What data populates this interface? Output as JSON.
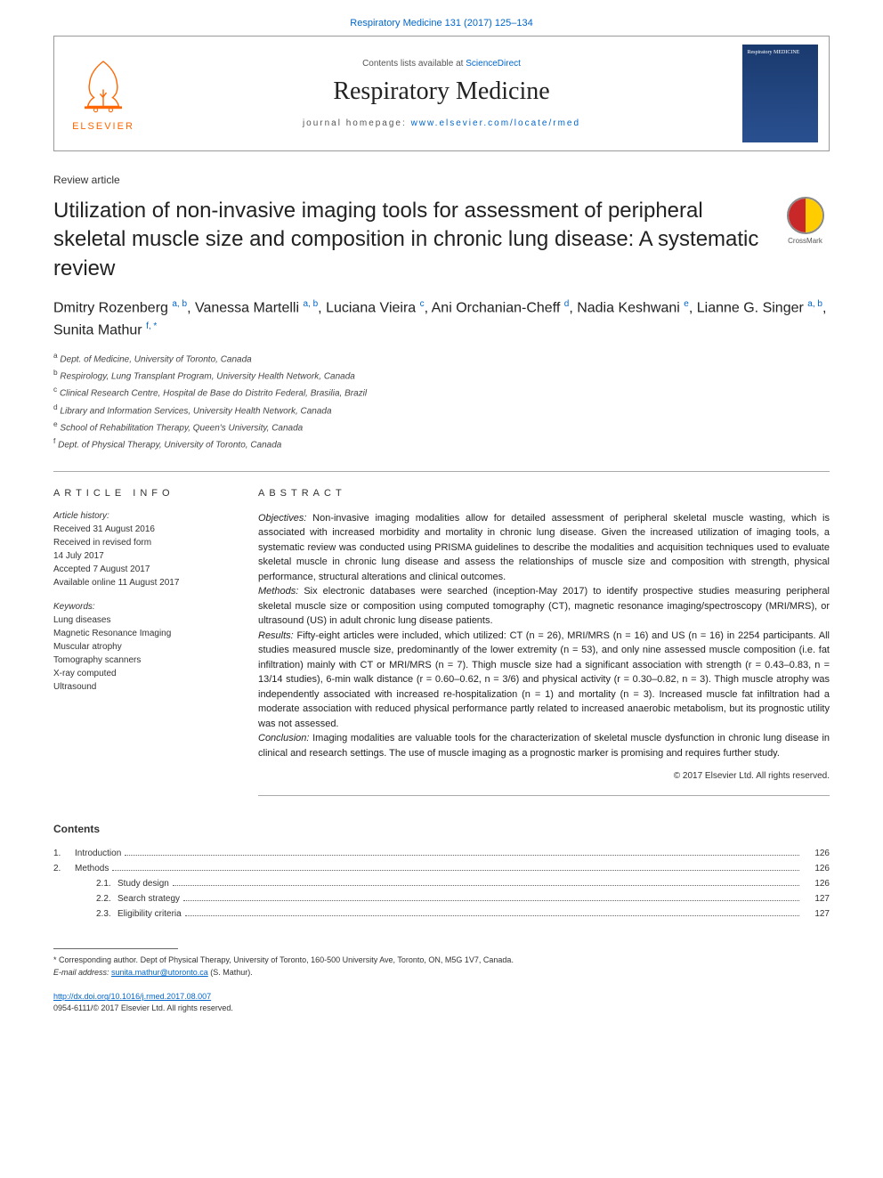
{
  "citation": "Respiratory Medicine 131 (2017) 125–134",
  "header": {
    "contents_prefix": "Contents lists available at ",
    "contents_link": "ScienceDirect",
    "journal_name": "Respiratory Medicine",
    "homepage_prefix": "journal homepage: ",
    "homepage_url": "www.elsevier.com/locate/rmed",
    "publisher": "ELSEVIER",
    "cover_text": "Respiratory MEDICINE"
  },
  "article_type": "Review article",
  "title": "Utilization of non-invasive imaging tools for assessment of peripheral skeletal muscle size and composition in chronic lung disease: A systematic review",
  "crossmark_label": "CrossMark",
  "authors_html": "Dmitry Rozenberg <sup>a, b</sup>, Vanessa Martelli <sup>a, b</sup>, Luciana Vieira <sup>c</sup>, Ani Orchanian-Cheff <sup>d</sup>, Nadia Keshwani <sup>e</sup>, Lianne G. Singer <sup>a, b</sup>, Sunita Mathur <sup>f, *</sup>",
  "affiliations": [
    {
      "sup": "a",
      "text": "Dept. of Medicine, University of Toronto, Canada"
    },
    {
      "sup": "b",
      "text": "Respirology, Lung Transplant Program, University Health Network, Canada"
    },
    {
      "sup": "c",
      "text": "Clinical Research Centre, Hospital de Base do Distrito Federal, Brasilia, Brazil"
    },
    {
      "sup": "d",
      "text": "Library and Information Services, University Health Network, Canada"
    },
    {
      "sup": "e",
      "text": "School of Rehabilitation Therapy, Queen's University, Canada"
    },
    {
      "sup": "f",
      "text": "Dept. of Physical Therapy, University of Toronto, Canada"
    }
  ],
  "info": {
    "heading": "ARTICLE INFO",
    "history_label": "Article history:",
    "history": [
      "Received 31 August 2016",
      "Received in revised form",
      "14 July 2017",
      "Accepted 7 August 2017",
      "Available online 11 August 2017"
    ],
    "keywords_label": "Keywords:",
    "keywords": [
      "Lung diseases",
      "Magnetic Resonance Imaging",
      "Muscular atrophy",
      "Tomography scanners",
      "X-ray computed",
      "Ultrasound"
    ]
  },
  "abstract": {
    "heading": "ABSTRACT",
    "objectives_label": "Objectives:",
    "objectives": " Non-invasive imaging modalities allow for detailed assessment of peripheral skeletal muscle wasting, which is associated with increased morbidity and mortality in chronic lung disease. Given the increased utilization of imaging tools, a systematic review was conducted using PRISMA guidelines to describe the modalities and acquisition techniques used to evaluate skeletal muscle in chronic lung disease and assess the relationships of muscle size and composition with strength, physical performance, structural alterations and clinical outcomes.",
    "methods_label": "Methods:",
    "methods": " Six electronic databases were searched (inception-May 2017) to identify prospective studies measuring peripheral skeletal muscle size or composition using computed tomography (CT), magnetic resonance imaging/spectroscopy (MRI/MRS), or ultrasound (US) in adult chronic lung disease patients.",
    "results_label": "Results:",
    "results": " Fifty-eight articles were included, which utilized: CT (n = 26), MRI/MRS (n = 16) and US (n = 16) in 2254 participants. All studies measured muscle size, predominantly of the lower extremity (n = 53), and only nine assessed muscle composition (i.e. fat infiltration) mainly with CT or MRI/MRS (n = 7). Thigh muscle size had a significant association with strength (r = 0.43–0.83, n = 13/14 studies), 6-min walk distance (r = 0.60–0.62, n = 3/6) and physical activity (r = 0.30–0.82, n = 3). Thigh muscle atrophy was independently associated with increased re-hospitalization (n = 1) and mortality (n = 3). Increased muscle fat infiltration had a moderate association with reduced physical performance partly related to increased anaerobic metabolism, but its prognostic utility was not assessed.",
    "conclusion_label": "Conclusion:",
    "conclusion": " Imaging modalities are valuable tools for the characterization of skeletal muscle dysfunction in chronic lung disease in clinical and research settings. The use of muscle imaging as a prognostic marker is promising and requires further study.",
    "copyright": "© 2017 Elsevier Ltd. All rights reserved."
  },
  "contents": {
    "heading": "Contents",
    "items": [
      {
        "num": "1.",
        "label": "Introduction",
        "page": "126",
        "level": 0
      },
      {
        "num": "2.",
        "label": "Methods",
        "page": "126",
        "level": 0
      },
      {
        "num": "2.1.",
        "label": "Study design",
        "page": "126",
        "level": 1
      },
      {
        "num": "2.2.",
        "label": "Search strategy",
        "page": "127",
        "level": 1
      },
      {
        "num": "2.3.",
        "label": "Eligibility criteria",
        "page": "127",
        "level": 1
      }
    ]
  },
  "footnote": {
    "corresponding": "* Corresponding author. Dept of Physical Therapy, University of Toronto, 160-500 University Ave, Toronto, ON, M5G 1V7, Canada.",
    "email_label": "E-mail address:",
    "email": "sunita.mathur@utoronto.ca",
    "email_suffix": " (S. Mathur)."
  },
  "bottom": {
    "doi": "http://dx.doi.org/10.1016/j.rmed.2017.08.007",
    "issn_line": "0954-6111/© 2017 Elsevier Ltd. All rights reserved."
  },
  "colors": {
    "link": "#0066cc",
    "orange": "#ff6600",
    "cover_bg_top": "#1a3a6e",
    "cover_bg_bot": "#2a5090",
    "crossmark_left": "#c82828",
    "crossmark_right": "#ffcc00",
    "text": "#333333",
    "rule": "#aaaaaa"
  }
}
